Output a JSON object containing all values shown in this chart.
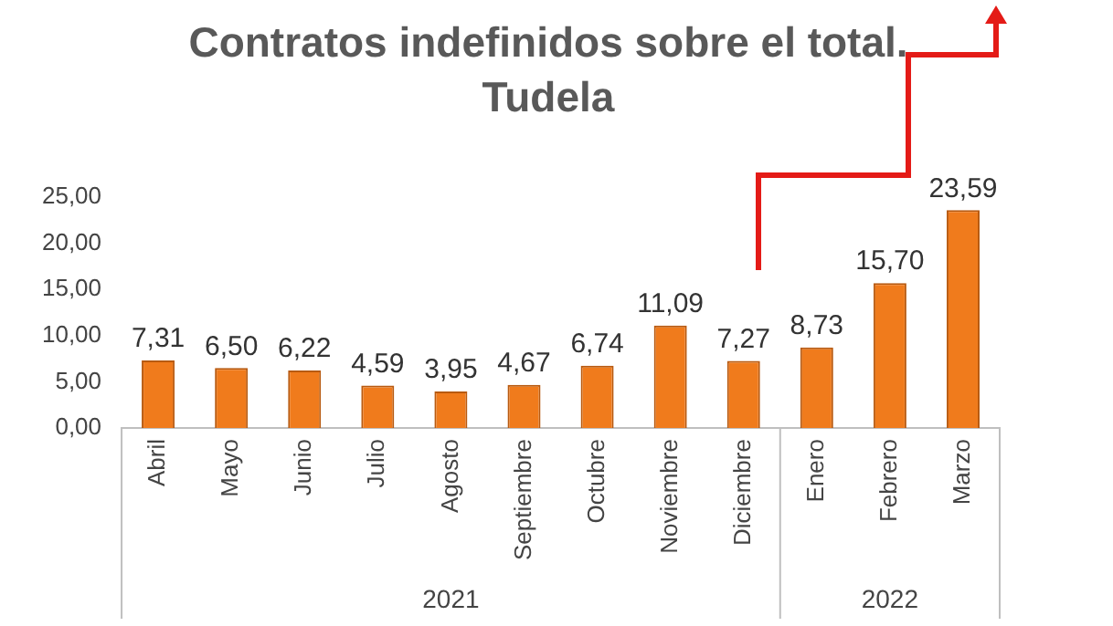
{
  "chart_data": {
    "type": "bar",
    "title": "Contratos indefinidos sobre el total. Tudela",
    "categories": [
      "Abril",
      "Mayo",
      "Junio",
      "Julio",
      "Agosto",
      "Septiembre",
      "Octubre",
      "Noviembre",
      "Diciembre",
      "Enero",
      "Febrero",
      "Marzo"
    ],
    "values": [
      7.31,
      6.5,
      6.22,
      4.59,
      3.95,
      4.67,
      6.74,
      11.09,
      7.27,
      8.73,
      15.7,
      23.59
    ],
    "value_labels": [
      "7,31",
      "6,50",
      "6,22",
      "4,59",
      "3,95",
      "4,67",
      "6,74",
      "11,09",
      "7,27",
      "8,73",
      "15,70",
      "23,59"
    ],
    "color": "#f07b1c",
    "ylim": [
      0,
      25
    ],
    "yticks": [
      {
        "value": 0,
        "label": "0,00"
      },
      {
        "value": 5,
        "label": "5,00"
      },
      {
        "value": 10,
        "label": "10,00"
      },
      {
        "value": 15,
        "label": "15,00"
      },
      {
        "value": 20,
        "label": "20,00"
      },
      {
        "value": 25,
        "label": "25,00"
      }
    ],
    "annotations": [
      "2021",
      "2022"
    ],
    "grid": false,
    "legend": false
  }
}
